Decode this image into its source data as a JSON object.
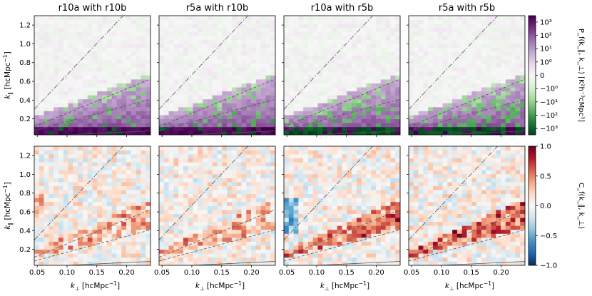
{
  "chart_data": {
    "type": "heatmap",
    "layout": "2 rows x 4 columns of heatmap panels, shared axes",
    "panels": [
      {
        "title": "r10a with r10b"
      },
      {
        "title": "r5a with r10b"
      },
      {
        "title": "r10a with r5b"
      },
      {
        "title": "r5a with r5b"
      }
    ],
    "x_axis": {
      "label": "k_⊥ [hcMpc⁻¹]",
      "label_main": "k",
      "label_sub": "⊥",
      "label_units": " [hcMpc",
      "label_exp": "−1",
      "label_close": "]",
      "range": [
        0.045,
        0.24
      ],
      "ticks": [
        0.05,
        0.1,
        0.15,
        0.2
      ],
      "tick_labels": [
        "0.05",
        "0.10",
        "0.15",
        "0.20"
      ]
    },
    "y_axis": {
      "label": "k_∥ [hcMpc⁻¹]",
      "label_main": "k",
      "label_sub": "∥",
      "label_units": " [hcMpc",
      "label_exp": "−1",
      "label_close": "]",
      "range": [
        0.03,
        1.3
      ],
      "ticks": [
        0.2,
        0.4,
        0.6,
        0.8,
        1.0,
        1.2
      ],
      "tick_labels": [
        "0.2",
        "0.4",
        "0.6",
        "0.8",
        "1.0",
        "1.2"
      ]
    },
    "grid": {
      "nx": 24,
      "ny": 30
    },
    "top_row": {
      "quantity": "cross power spectrum",
      "colorbar_label": "P_f(k_∥, k_⊥) [K²h⁻³cMpc³]",
      "scale": "symlog",
      "range": [
        -3000,
        3000
      ],
      "colormap": "PRGn",
      "ticks": [
        "10³",
        "10²",
        "10¹",
        "10⁰",
        "0",
        "−10⁰",
        "−10¹",
        "−10²",
        "−10³"
      ],
      "tick_values": [
        1000,
        100,
        10,
        1,
        0,
        -1,
        -10,
        -100,
        -1000
      ]
    },
    "bottom_row": {
      "quantity": "correlation coefficient",
      "colorbar_label": "C_f(k_∥, k_⊥)",
      "range": [
        -1.0,
        1.0
      ],
      "colormap": "RdBu_r",
      "ticks": [
        "1.0",
        "0.5",
        "0.0",
        "−0.5",
        "−1.0"
      ],
      "tick_values": [
        1.0,
        0.5,
        0.0,
        -0.5,
        -1.0
      ]
    },
    "overlay_lines": [
      {
        "style": "solid",
        "description": "horizon limit",
        "slope": 0.3
      },
      {
        "style": "dashed",
        "description": "buffer line",
        "slope": 1.7
      },
      {
        "style": "dashed",
        "description": "buffer line",
        "slope": 2.6
      },
      {
        "style": "dash-dot",
        "description": "wedge line",
        "slope": 6.7
      }
    ]
  },
  "colors": {
    "prgn": [
      "#00441b",
      "#1b7837",
      "#5aae61",
      "#a6dba0",
      "#d9f0d3",
      "#f7f7f7",
      "#e7d4e8",
      "#c2a5cf",
      "#9970ab",
      "#762a83",
      "#40004b"
    ],
    "rdbu": [
      "#053061",
      "#2166ac",
      "#4393c3",
      "#92c5de",
      "#d1e5f0",
      "#f7f7f7",
      "#fddbc7",
      "#f4a582",
      "#d6604d",
      "#b2182b",
      "#67001f"
    ]
  }
}
